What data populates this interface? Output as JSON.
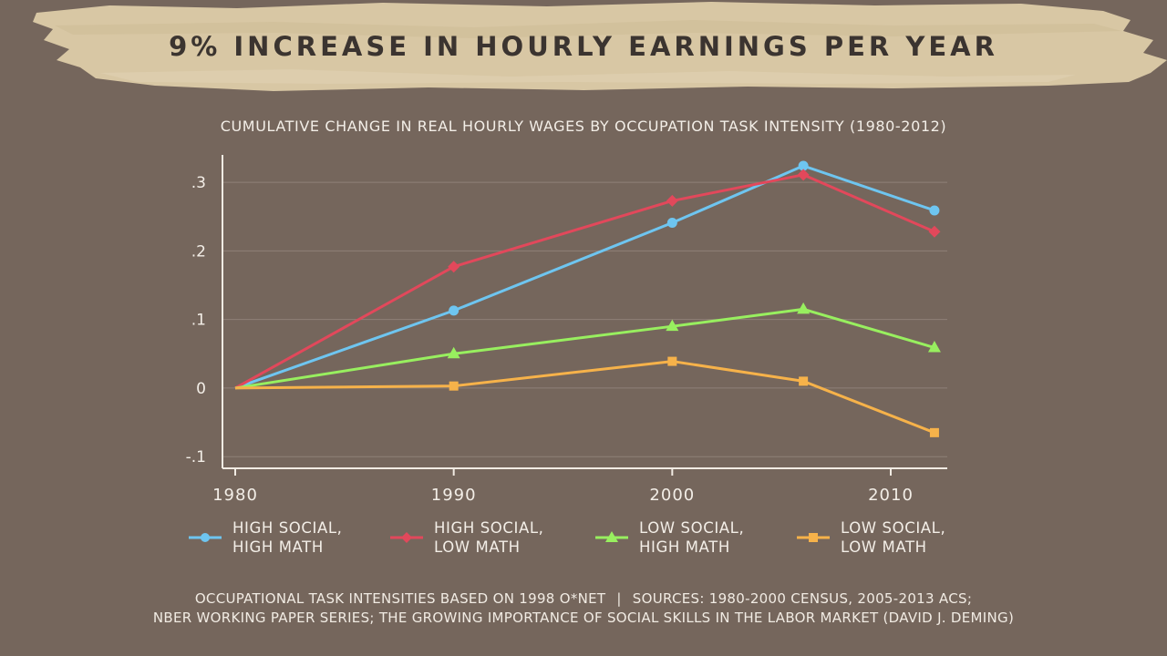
{
  "headline": "9% INCREASE IN HOURLY EARNINGS PER YEAR",
  "colors": {
    "background": "#75665c",
    "banner": "#d8c7a4",
    "headline_text": "#3b3430"
  },
  "chart_data": {
    "type": "line",
    "title": "CUMULATIVE CHANGE IN REAL HOURLY WAGES BY OCCUPATION TASK INTENSITY (1980-2012)",
    "xlabel": "",
    "ylabel": "",
    "xlim": [
      1980,
      2013
    ],
    "ylim": [
      -0.117,
      0.34
    ],
    "x_ticks": [
      1980,
      1990,
      2000,
      2010
    ],
    "x_tick_labels": [
      "1980",
      "1990",
      "2000",
      "2010"
    ],
    "y_ticks": [
      -0.1,
      0,
      0.1,
      0.2,
      0.3
    ],
    "y_tick_labels": [
      "-.1",
      "0",
      ".1",
      ".2",
      ".3"
    ],
    "grid": true,
    "legend_position": "bottom",
    "series": [
      {
        "name": "HIGH SOCIAL, HIGH MATH",
        "line1": "HIGH SOCIAL,",
        "line2": "HIGH MATH",
        "color": "#6ec5f0",
        "marker": "circle",
        "x": [
          1980,
          1990,
          2000,
          2006,
          2012
        ],
        "y": [
          0,
          0.113,
          0.241,
          0.324,
          0.259
        ]
      },
      {
        "name": "HIGH SOCIAL, LOW MATH",
        "line1": "HIGH SOCIAL,",
        "line2": "LOW MATH",
        "color": "#e2485b",
        "marker": "diamond",
        "x": [
          1980,
          1990,
          2000,
          2006,
          2012
        ],
        "y": [
          0,
          0.177,
          0.273,
          0.311,
          0.228
        ]
      },
      {
        "name": "LOW SOCIAL, HIGH MATH",
        "line1": "LOW SOCIAL,",
        "line2": "HIGH MATH",
        "color": "#98ef5f",
        "marker": "triangle",
        "x": [
          1980,
          1990,
          2000,
          2006,
          2012
        ],
        "y": [
          0,
          0.05,
          0.09,
          0.115,
          0.059
        ]
      },
      {
        "name": "LOW SOCIAL, LOW MATH",
        "line1": "LOW SOCIAL,",
        "line2": "LOW MATH",
        "color": "#f6b24a",
        "marker": "square",
        "x": [
          1980,
          1990,
          2000,
          2006,
          2012
        ],
        "y": [
          0,
          0.003,
          0.039,
          0.01,
          -0.065
        ]
      }
    ]
  },
  "footnote": {
    "line1_left": "OCCUPATIONAL TASK INTENSITIES BASED ON 1998 O*NET",
    "separator": "|",
    "line1_right": "SOURCES: 1980-2000 CENSUS, 2005-2013 ACS;",
    "line2": "NBER WORKING PAPER SERIES; THE GROWING IMPORTANCE OF SOCIAL SKILLS IN THE LABOR MARKET (DAVID J. DEMING)"
  }
}
